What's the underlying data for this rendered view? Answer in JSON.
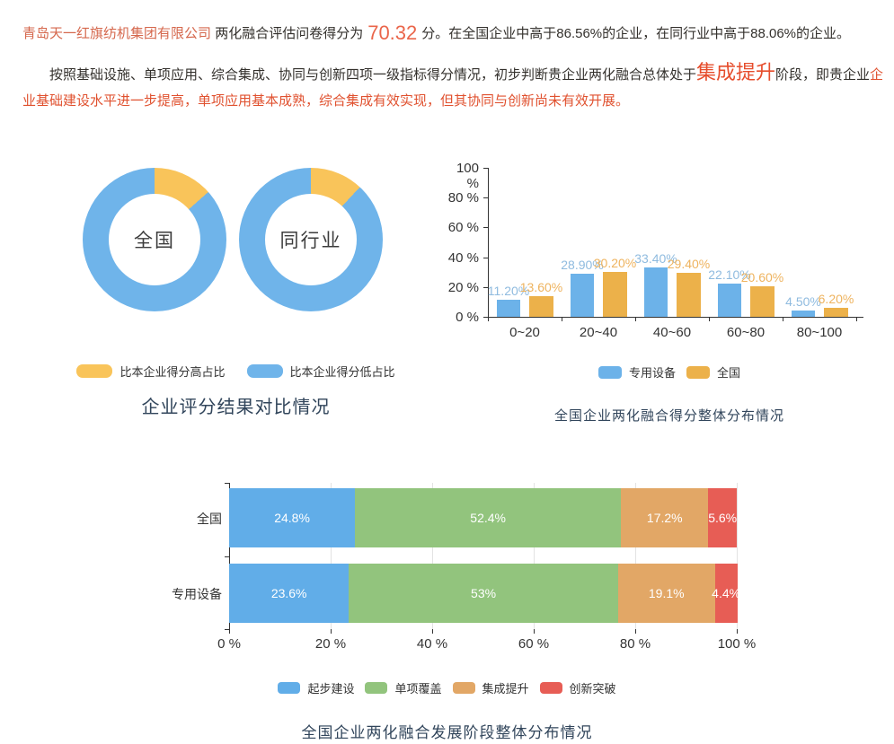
{
  "summary": {
    "company": "青岛天一红旗纺机集团有限公司",
    "prefix": "两化融合评估问卷得分为",
    "score": "70.32",
    "suffix": "分。在全国企业中高于86.56%的企业，在同行业中高于88.06%的企业。"
  },
  "stage_assessment": {
    "lead": "按照基础设施、单项应用、综合集成、协同与创新四项一级指标得分情况，初步判断贵企业两化融合总体处于",
    "stage": "集成提升",
    "mid": "阶段，即贵企业",
    "detail": "企业基础建设水平进一步提高，单项应用基本成熟，综合集成有效实现，但其协同与创新尚未有效开展。"
  },
  "chart_data": [
    {
      "id": "score-compare",
      "type": "pie",
      "title": "企业评分结果对比情况",
      "legend_position": "bottom",
      "donuts": [
        {
          "id": "national",
          "label": "全国",
          "slices": [
            {
              "name": "比本企业得分高占比",
              "value": 13.44,
              "color": "#f9c45a"
            },
            {
              "name": "比本企业得分低占比",
              "value": 86.56,
              "color": "#6fb4ea"
            }
          ]
        },
        {
          "id": "industry",
          "label": "同行业",
          "slices": [
            {
              "name": "比本企业得分高占比",
              "value": 11.94,
              "color": "#f9c45a"
            },
            {
              "name": "比本企业得分低占比",
              "value": 88.06,
              "color": "#6fb4ea"
            }
          ]
        }
      ],
      "legend": [
        {
          "label": "比本企业得分高占比",
          "color": "#f9c45a"
        },
        {
          "label": "比本企业得分低占比",
          "color": "#6fb4ea"
        }
      ]
    },
    {
      "id": "score-distribution",
      "type": "bar",
      "title": "全国企业两化融合得分整体分布情况",
      "categories": [
        "0~20",
        "20~40",
        "40~60",
        "60~80",
        "80~100"
      ],
      "series": [
        {
          "name": "专用设备",
          "color": "#6cb2e9",
          "label_color": "#8fbbdf",
          "values": [
            11.2,
            28.9,
            33.4,
            22.1,
            4.5
          ],
          "labels": [
            "11.20%",
            "28.90%",
            "33.40%",
            "22.10%",
            "4.50%"
          ]
        },
        {
          "name": "全国",
          "color": "#ecb14a",
          "label_color": "#eeb35e",
          "values": [
            13.6,
            30.2,
            29.4,
            20.6,
            6.2
          ],
          "labels": [
            "13.60%",
            "30.20%",
            "29.40%",
            "20.60%",
            "6.20%"
          ]
        }
      ],
      "ylim": [
        0,
        100
      ],
      "yticks": [
        "0 %",
        "20 %",
        "40 %",
        "60 %",
        "80 %",
        "100 %"
      ],
      "grid": false,
      "legend_position": "bottom"
    },
    {
      "id": "stage-distribution",
      "type": "stacked-bar",
      "title": "全国企业两化融合发展阶段整体分布情况",
      "stages": [
        "起步建设",
        "单项覆盖",
        "集成提升",
        "创新突破"
      ],
      "colors": [
        "#61ade8",
        "#92c47d",
        "#e2a766",
        "#e75d55"
      ],
      "rows": [
        {
          "label": "全国",
          "values": [
            24.8,
            52.4,
            17.2,
            5.6
          ],
          "labels": [
            "24.8%",
            "52.4%",
            "17.2%",
            "5.6%"
          ]
        },
        {
          "label": "专用设备",
          "values": [
            23.6,
            53,
            19.1,
            4.4
          ],
          "labels": [
            "23.6%",
            "53%",
            "19.1%",
            "4.4%"
          ]
        }
      ],
      "xlim": [
        0,
        100
      ],
      "xticks": [
        "0 %",
        "20 %",
        "40 %",
        "60 %",
        "80 %",
        "100 %"
      ],
      "grid": true,
      "legend_position": "bottom",
      "legend": [
        {
          "label": "起步建设",
          "color": "#61ade8"
        },
        {
          "label": "单项覆盖",
          "color": "#92c47d"
        },
        {
          "label": "集成提升",
          "color": "#e2a766"
        },
        {
          "label": "创新突破",
          "color": "#e75d55"
        }
      ]
    }
  ]
}
